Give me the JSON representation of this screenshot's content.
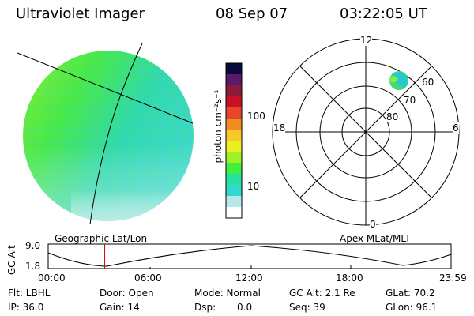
{
  "header": {
    "instrument": "Ultraviolet Imager",
    "date": "08 Sep 07",
    "time": "03:22:05 UT"
  },
  "colorbar": {
    "label": "photon cm⁻²s⁻¹",
    "ticks": [
      "100",
      "10"
    ],
    "colors": [
      "#0a0a3c",
      "#5a1a6a",
      "#8c1a3c",
      "#c8102a",
      "#e8462a",
      "#f08c20",
      "#f8c828",
      "#e8f020",
      "#a0f028",
      "#40f040",
      "#28e0a0",
      "#30d8d0",
      "#b8e8e8",
      "#ffffff"
    ]
  },
  "polar": {
    "mlt_labels": [
      "12",
      "18",
      "6",
      "0"
    ],
    "lat_labels": [
      "60",
      "70",
      "80"
    ]
  },
  "panel_labels": {
    "left": "Geographic Lat/Lon",
    "right": "Apex MLat/MLT"
  },
  "altitude": {
    "ylabel": "GC Alt",
    "ymax": "9.0",
    "ymin": "1.8",
    "xticks": [
      "00:00",
      "06:00",
      "12:00",
      "18:00",
      "23:59"
    ],
    "marker_time_hours": 3.368
  },
  "info": {
    "flt": "Flt: LBHL",
    "ip": "IP: 36.0",
    "door": "Door: Open",
    "gain": "Gain: 14",
    "mode": "Mode: Normal",
    "dsp_label": "Dsp:",
    "dsp_value": "0.0",
    "gcalt": "GC Alt: 2.1 Re",
    "seq": "Seq: 39",
    "glat": "GLat: 70.2",
    "glon": "GLon: 96.1"
  }
}
